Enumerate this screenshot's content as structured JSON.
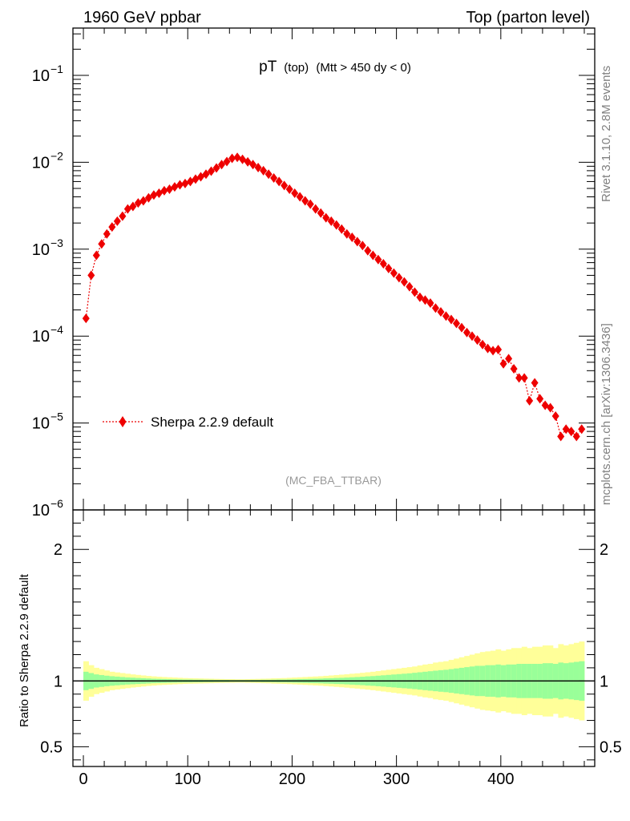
{
  "header": {
    "left": "1960 GeV ppbar",
    "right": "Top (parton level)"
  },
  "side": {
    "rivet": "Rivet 3.1.10,  2.8M events",
    "mcplots": "mcplots.cern.ch [arXiv:1306.3436]"
  },
  "chart_data": {
    "type": "line",
    "title": {
      "main": "pT",
      "sub1": "(top)",
      "sub2": "(Mtt > 450 dy < 0)"
    },
    "watermark": "(MC_FBA_TTBAR)",
    "ratio_ylabel": "Ratio to Sherpa 2.2.9 default",
    "x_range": [
      -10,
      490
    ],
    "x_ticks": [
      0,
      100,
      200,
      300,
      400
    ],
    "y_main": {
      "scale": "log",
      "range": [
        1e-06,
        0.35
      ],
      "tick_labels": [
        {
          "value": 0.1,
          "base": "10",
          "exp": "−1"
        },
        {
          "value": 0.01,
          "base": "10",
          "exp": "−2"
        },
        {
          "value": 0.001,
          "base": "10",
          "exp": "−3"
        },
        {
          "value": 0.0001,
          "base": "10",
          "exp": "−4"
        },
        {
          "value": 1e-05,
          "base": "10",
          "exp": "−5"
        },
        {
          "value": 1e-06,
          "base": "10",
          "exp": "−6"
        }
      ]
    },
    "y_ratio": {
      "range": [
        0.35,
        2.3
      ],
      "ticks": [
        0.5,
        1,
        2
      ],
      "tick_labels": [
        "0.5",
        "1",
        "2"
      ]
    },
    "legend": {
      "label": "Sherpa 2.2.9 default",
      "position": "bottom-left"
    },
    "colors": {
      "series": "#ee0000",
      "inner_band": "#99ff99",
      "outer_band": "#ffff99"
    },
    "series": [
      {
        "name": "Sherpa 2.2.9 default",
        "x": [
          2.5,
          7.5,
          12.5,
          17.5,
          22.5,
          27.5,
          32.5,
          37.5,
          42.5,
          47.5,
          52.5,
          57.5,
          62.5,
          67.5,
          72.5,
          77.5,
          82.5,
          87.5,
          92.5,
          97.5,
          102.5,
          107.5,
          112.5,
          117.5,
          122.5,
          127.5,
          132.5,
          137.5,
          142.5,
          147.5,
          152.5,
          157.5,
          162.5,
          167.5,
          172.5,
          177.5,
          182.5,
          187.5,
          192.5,
          197.5,
          202.5,
          207.5,
          212.5,
          217.5,
          222.5,
          227.5,
          232.5,
          237.5,
          242.5,
          247.5,
          252.5,
          257.5,
          262.5,
          267.5,
          272.5,
          277.5,
          282.5,
          287.5,
          292.5,
          297.5,
          302.5,
          307.5,
          312.5,
          317.5,
          322.5,
          327.5,
          332.5,
          337.5,
          342.5,
          347.5,
          352.5,
          357.5,
          362.5,
          367.5,
          372.5,
          377.5,
          382.5,
          387.5,
          392.5,
          397.5,
          402.5,
          407.5,
          412.5,
          417.5,
          422.5,
          427.5,
          432.5,
          437.5,
          442.5,
          447.5,
          452.5,
          457.5,
          462.5,
          467.5,
          472.5,
          477.5
        ],
        "y": [
          0.00016,
          0.0005,
          0.00085,
          0.00115,
          0.0015,
          0.0018,
          0.0021,
          0.0024,
          0.0029,
          0.0031,
          0.0034,
          0.0036,
          0.0039,
          0.0042,
          0.0044,
          0.0047,
          0.0049,
          0.0052,
          0.0055,
          0.0057,
          0.006,
          0.0064,
          0.0068,
          0.0073,
          0.0079,
          0.0086,
          0.0094,
          0.0102,
          0.0111,
          0.0114,
          0.0108,
          0.0101,
          0.0094,
          0.0087,
          0.008,
          0.0073,
          0.0066,
          0.006,
          0.0054,
          0.0049,
          0.0044,
          0.004,
          0.0036,
          0.0033,
          0.0029,
          0.0026,
          0.0023,
          0.0021,
          0.0019,
          0.0017,
          0.0015,
          0.00137,
          0.00122,
          0.0011,
          0.00096,
          0.00085,
          0.00076,
          0.00068,
          0.0006,
          0.00053,
          0.00047,
          0.00042,
          0.00037,
          0.00032,
          0.00028,
          0.00026,
          0.00024,
          0.00021,
          0.00019,
          0.00017,
          0.000155,
          0.00014,
          0.000125,
          0.00011,
          0.0001,
          9e-05,
          8e-05,
          7.2e-05,
          6.8e-05,
          7e-05,
          4.8e-05,
          5.5e-05,
          4.2e-05,
          3.3e-05,
          3.3e-05,
          1.8e-05,
          2.9e-05,
          1.9e-05,
          1.6e-05,
          1.5e-05,
          1.2e-05,
          7e-06,
          8.5e-06,
          8e-06,
          7e-06,
          8.5e-06
        ]
      }
    ],
    "ratio_bands": {
      "x_edges": [
        0,
        5,
        10,
        15,
        20,
        25,
        30,
        35,
        40,
        45,
        50,
        55,
        60,
        65,
        70,
        75,
        80,
        85,
        90,
        95,
        100,
        105,
        110,
        115,
        120,
        125,
        130,
        135,
        140,
        145,
        150,
        155,
        160,
        165,
        170,
        175,
        180,
        185,
        190,
        195,
        200,
        205,
        210,
        215,
        220,
        225,
        230,
        235,
        240,
        245,
        250,
        255,
        260,
        265,
        270,
        275,
        280,
        285,
        290,
        295,
        300,
        305,
        310,
        315,
        320,
        325,
        330,
        335,
        340,
        345,
        350,
        355,
        360,
        365,
        370,
        375,
        380,
        385,
        390,
        395,
        400,
        405,
        410,
        415,
        420,
        425,
        430,
        435,
        440,
        445,
        450,
        455,
        460,
        465,
        470,
        475,
        480
      ],
      "inner": [
        0.07,
        0.06,
        0.05,
        0.045,
        0.04,
        0.036,
        0.033,
        0.03,
        0.027,
        0.025,
        0.023,
        0.021,
        0.019,
        0.017,
        0.016,
        0.015,
        0.014,
        0.013,
        0.012,
        0.011,
        0.011,
        0.01,
        0.01,
        0.009,
        0.009,
        0.008,
        0.008,
        0.008,
        0.007,
        0.007,
        0.007,
        0.007,
        0.008,
        0.008,
        0.009,
        0.009,
        0.01,
        0.011,
        0.011,
        0.012,
        0.013,
        0.014,
        0.015,
        0.016,
        0.017,
        0.018,
        0.02,
        0.021,
        0.023,
        0.024,
        0.026,
        0.028,
        0.03,
        0.032,
        0.035,
        0.037,
        0.04,
        0.043,
        0.046,
        0.049,
        0.052,
        0.055,
        0.058,
        0.062,
        0.066,
        0.07,
        0.074,
        0.078,
        0.082,
        0.085,
        0.09,
        0.095,
        0.1,
        0.105,
        0.11,
        0.115,
        0.115,
        0.12,
        0.12,
        0.125,
        0.12,
        0.125,
        0.125,
        0.13,
        0.13,
        0.13,
        0.13,
        0.13,
        0.135,
        0.135,
        0.13,
        0.14,
        0.135,
        0.14,
        0.145,
        0.15
      ],
      "outer": [
        0.15,
        0.12,
        0.1,
        0.09,
        0.08,
        0.07,
        0.065,
        0.06,
        0.055,
        0.05,
        0.046,
        0.042,
        0.038,
        0.035,
        0.032,
        0.03,
        0.028,
        0.026,
        0.024,
        0.022,
        0.021,
        0.02,
        0.019,
        0.018,
        0.017,
        0.016,
        0.015,
        0.014,
        0.014,
        0.013,
        0.013,
        0.014,
        0.015,
        0.016,
        0.017,
        0.018,
        0.02,
        0.021,
        0.022,
        0.024,
        0.026,
        0.028,
        0.03,
        0.032,
        0.034,
        0.036,
        0.039,
        0.042,
        0.045,
        0.048,
        0.051,
        0.055,
        0.058,
        0.062,
        0.066,
        0.07,
        0.075,
        0.08,
        0.085,
        0.09,
        0.095,
        0.1,
        0.105,
        0.11,
        0.118,
        0.125,
        0.13,
        0.14,
        0.145,
        0.15,
        0.16,
        0.17,
        0.18,
        0.19,
        0.2,
        0.21,
        0.22,
        0.225,
        0.23,
        0.24,
        0.23,
        0.24,
        0.25,
        0.25,
        0.26,
        0.25,
        0.26,
        0.26,
        0.27,
        0.27,
        0.25,
        0.28,
        0.27,
        0.28,
        0.29,
        0.3
      ]
    }
  }
}
